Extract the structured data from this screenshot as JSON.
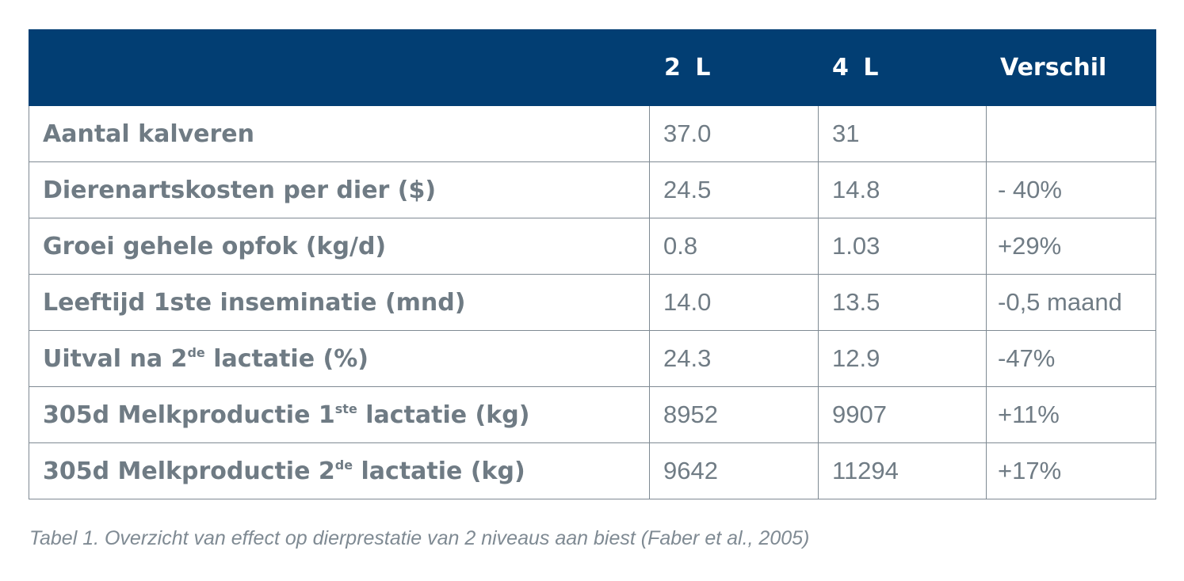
{
  "table": {
    "headers": [
      "",
      "2 L",
      "4 L",
      "Verschil"
    ],
    "rows": [
      {
        "label": "Aantal kalveren",
        "sup": "",
        "suffix": "",
        "v2": "37.0",
        "v4": "31",
        "diff": ""
      },
      {
        "label": "Dierenartskosten per dier ($)",
        "sup": "",
        "suffix": "",
        "v2": "24.5",
        "v4": "14.8",
        "diff": "- 40%"
      },
      {
        "label": "Groei gehele opfok (kg/d)",
        "sup": "",
        "suffix": "",
        "v2": "0.8",
        "v4": "1.03",
        "diff": "+29%"
      },
      {
        "label": "Leeftijd 1ste inseminatie (mnd)",
        "sup": "",
        "suffix": "",
        "v2": "14.0",
        "v4": "13.5",
        "diff": "-0,5 maand"
      },
      {
        "label": "Uitval na 2",
        "sup": "de",
        "suffix": " lactatie (%)",
        "v2": "24.3",
        "v4": "12.9",
        "diff": "-47%"
      },
      {
        "label": "305d Melkproductie 1",
        "sup": "ste",
        "suffix": " lactatie (kg)",
        "v2": "8952",
        "v4": "9907",
        "diff": "+11%"
      },
      {
        "label": "305d Melkproductie 2",
        "sup": "de",
        "suffix": " lactatie (kg)",
        "v2": "9642",
        "v4": "11294",
        "diff": "+17%"
      }
    ]
  },
  "caption": "Tabel 1. Overzicht van effect op dierprestatie van 2 niveaus aan biest (Faber et al., 2005)",
  "colors": {
    "header_bg": "#023e73",
    "text": "#6f7b84",
    "border": "#7f8a93"
  }
}
